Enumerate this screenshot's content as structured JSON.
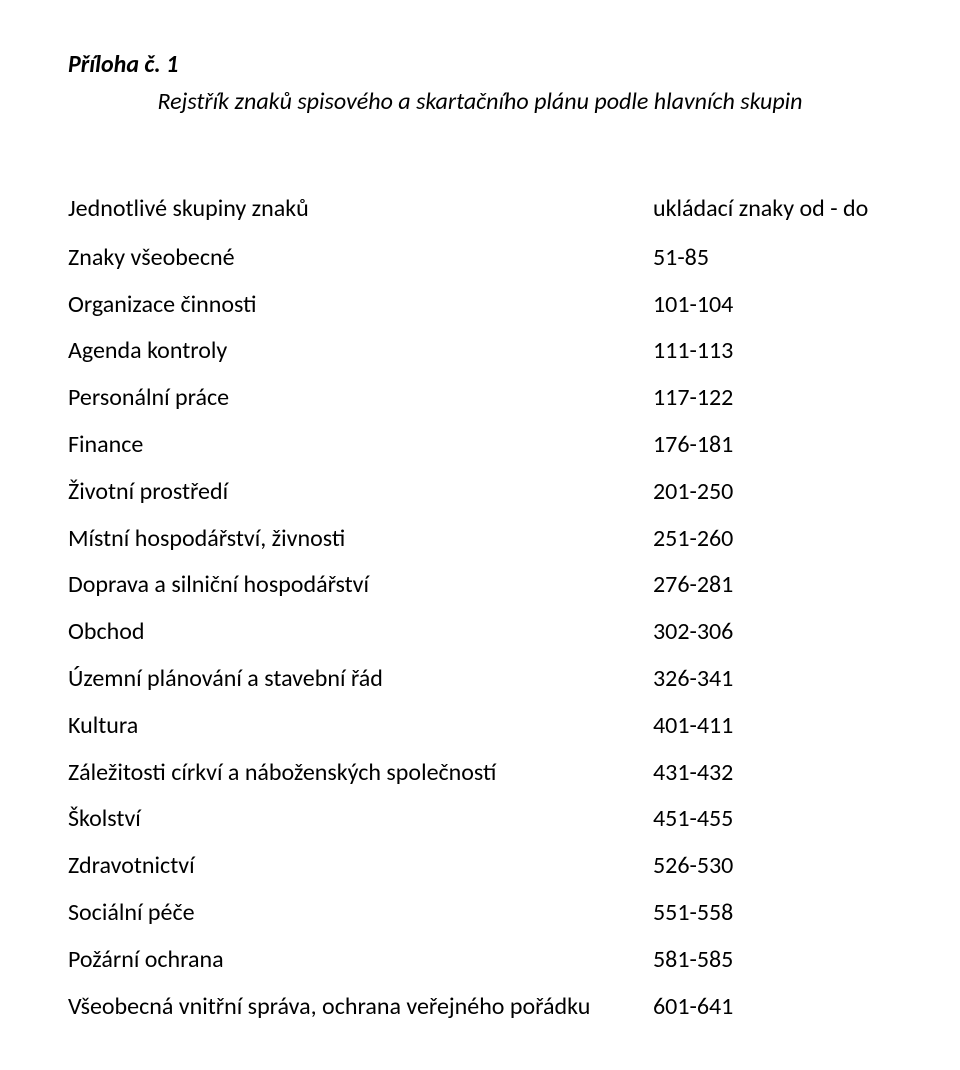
{
  "title": "Příloha č. 1",
  "subtitle": "Rejstřík znaků spisového a skartačního plánu podle hlavních skupin",
  "header": {
    "label": "Jednotlivé skupiny znaků",
    "value": "ukládací znaky od - do"
  },
  "rows": [
    {
      "label": "Znaky všeobecné",
      "value": "51-85"
    },
    {
      "label": "Organizace činnosti",
      "value": "101-104"
    },
    {
      "label": "Agenda kontroly",
      "value": "111-113"
    },
    {
      "label": "Personální práce",
      "value": "117-122"
    },
    {
      "label": "Finance",
      "value": "176-181"
    },
    {
      "label": "Životní prostředí",
      "value": "201-250"
    },
    {
      "label": "Místní hospodářství, živnosti",
      "value": "251-260"
    },
    {
      "label": "Doprava a silniční hospodářství",
      "value": "276-281"
    },
    {
      "label": "Obchod",
      "value": "302-306"
    },
    {
      "label": "Územní plánování a stavební řád",
      "value": "326-341"
    },
    {
      "label": "Kultura",
      "value": "401-411"
    },
    {
      "label": "Záležitosti církví a náboženských společností",
      "value": "431-432"
    },
    {
      "label": "Školství",
      "value": "451-455"
    },
    {
      "label": "Zdravotnictví",
      "value": "526-530"
    },
    {
      "label": "Sociální péče",
      "value": "551-558"
    },
    {
      "label": "Požární ochrana",
      "value": "581-585"
    },
    {
      "label": "Všeobecná vnitřní správa, ochrana veřejného pořádku",
      "value": "601-641"
    }
  ],
  "colors": {
    "text": "#000000",
    "background": "#ffffff"
  },
  "font": {
    "family": "Calibri",
    "body_size_pt": 18,
    "heading_size_pt": 18,
    "line_height": 1.95
  }
}
